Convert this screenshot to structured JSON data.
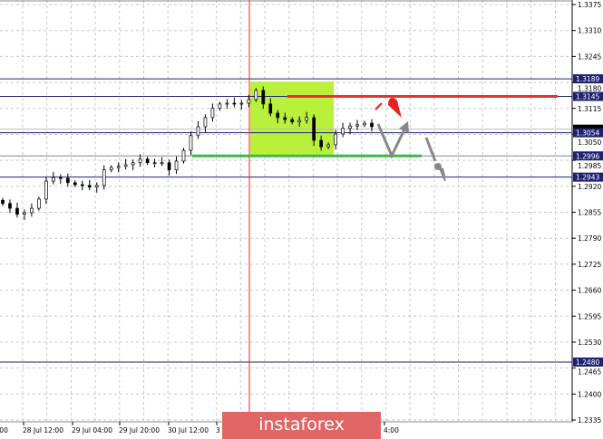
{
  "chart_data": {
    "type": "candlestick",
    "symbol_hidden": true,
    "ylim": [
      1.2335,
      1.3375
    ],
    "y_ticks": [
      "1.3375",
      "1.3310",
      "1.3245",
      "1.3180",
      "1.3115",
      "1.3050",
      "1.2985",
      "1.2920",
      "1.2855",
      "1.2790",
      "1.2725",
      "1.2660",
      "1.2595",
      "1.2530",
      "1.2465",
      "1.2400",
      "1.2335"
    ],
    "x_ticks": [
      "0:00",
      "28 Jul 12:00",
      "29 Jul 04:00",
      "29 Jul 20:00",
      "30 Jul 12:00",
      "3",
      "4:00"
    ],
    "grid": true,
    "close": [
      1.2877,
      1.2865,
      1.285,
      1.2854,
      1.2865,
      1.2888,
      1.2933,
      1.2942,
      1.294,
      1.2929,
      1.2924,
      1.2922,
      1.2918,
      1.2922,
      1.2961,
      1.2967,
      1.297,
      1.2974,
      1.2979,
      1.2988,
      1.2979,
      1.2979,
      1.2979,
      1.2961,
      1.2983,
      1.301,
      1.3047,
      1.3069,
      1.3092,
      1.3115,
      1.3126,
      1.3128,
      1.3126,
      1.3128,
      1.3137,
      1.316,
      1.3126,
      1.3103,
      1.3092,
      1.3087,
      1.3081,
      1.3085,
      1.3092,
      1.3035,
      1.3019,
      1.3024,
      1.3051,
      1.3065,
      1.3071,
      1.3074,
      1.3078,
      1.3069
    ],
    "level_lines": [
      {
        "price": "1.3189",
        "color": "#1f2270"
      },
      {
        "price": "1.3145",
        "color": "#1f2270"
      },
      {
        "price": "1.3054",
        "color": "#1f2270"
      },
      {
        "price": "1.2996",
        "color": "#8080b0"
      },
      {
        "price": "1.2943",
        "color": "#1f2270"
      },
      {
        "price": "1.2480",
        "color": "#1f2270"
      }
    ],
    "current_price": 1.3063,
    "resistance_line": {
      "price": 1.3145,
      "color": "#e83030"
    },
    "support_line": {
      "price": 1.2996,
      "color": "#3cb84a"
    },
    "highlight_zone": {
      "price_top": 1.3182,
      "price_bottom": 1.2996,
      "color": "#b8f03c"
    },
    "vertical_marker_color": "#ff2020",
    "annotations": [
      "gray-arrow-bounce-up",
      "gray-arrow-breakdown-down",
      "red-drop-marker"
    ]
  },
  "watermark": {
    "text": "instaforex",
    "color": "#e06666"
  }
}
